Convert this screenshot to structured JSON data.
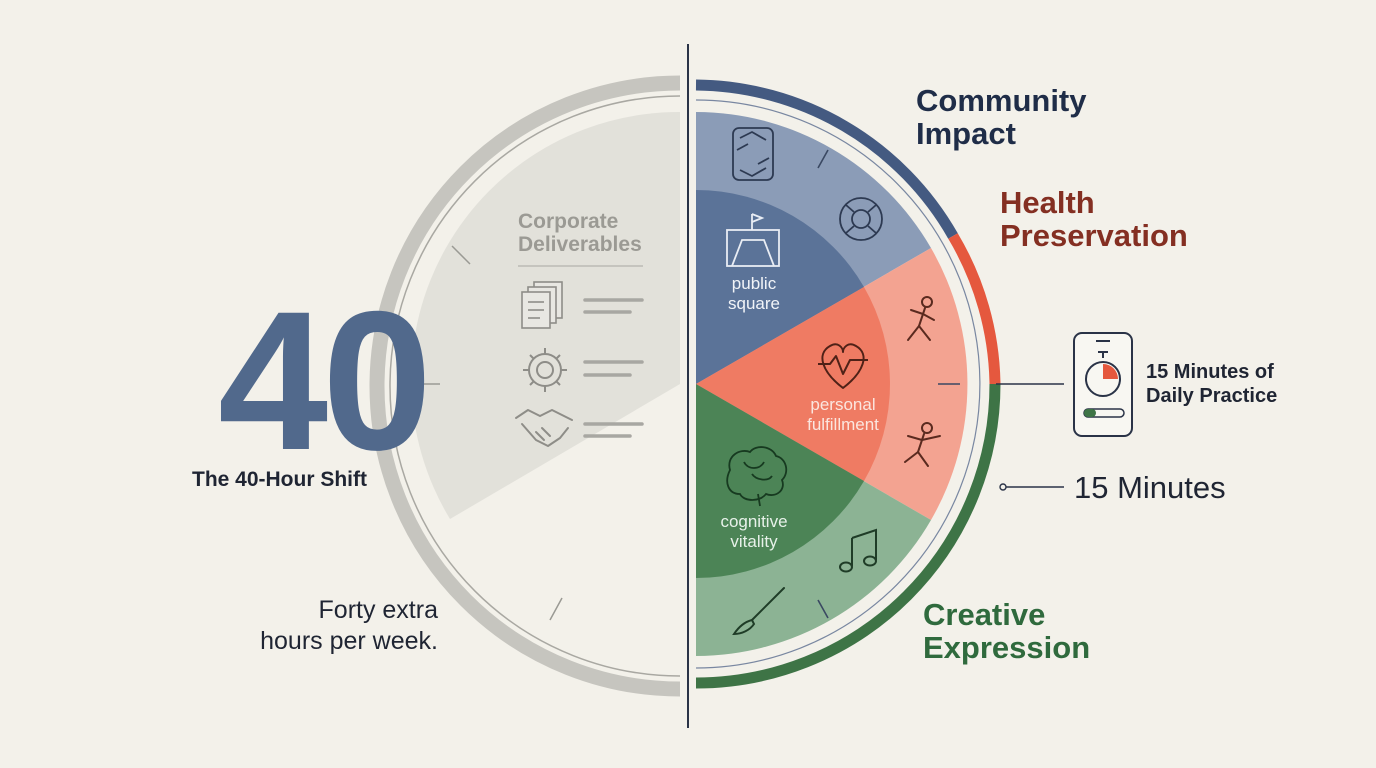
{
  "left": {
    "big_number": "40",
    "shift_label": "The 40-Hour Shift",
    "extra_line_1": "Forty extra",
    "extra_line_2": "hours per week.",
    "corporate_title_1": "Corporate",
    "corporate_title_2": "Deliverables",
    "corporate_icons": [
      "documents-icon",
      "gear-icon",
      "handshake-icon"
    ]
  },
  "right": {
    "segments": [
      {
        "label_1": "public",
        "label_2": "square",
        "color": "#5b7398",
        "outer_color": "#8b9cb7",
        "icons": [
          "hands-circle-icon",
          "life-buoy-icon",
          "gate-flag-icon"
        ]
      },
      {
        "label_1": "personal",
        "label_2": "fulfillment",
        "color": "#ef7b63",
        "outer_color": "#f3a391",
        "icons": [
          "runner-icon",
          "heartbeat-icon",
          "dancer-icon"
        ]
      },
      {
        "label_1": "cognitive",
        "label_2": "vitality",
        "color": "#4c8456",
        "outer_color": "#8cb394",
        "icons": [
          "brain-icon",
          "music-note-icon",
          "paintbrush-icon"
        ]
      }
    ],
    "headings": {
      "community_1": "Community",
      "community_2": "Impact",
      "health_1": "Health",
      "health_2": "Preservation",
      "creative_1": "Creative",
      "creative_2": "Expression"
    },
    "ring_colors": {
      "community": "#445a81",
      "health": "#e5583e",
      "creative": "#3e7446"
    },
    "practice_1": "15 Minutes of",
    "practice_2": "Daily Practice",
    "minutes_label": "15 Minutes"
  }
}
